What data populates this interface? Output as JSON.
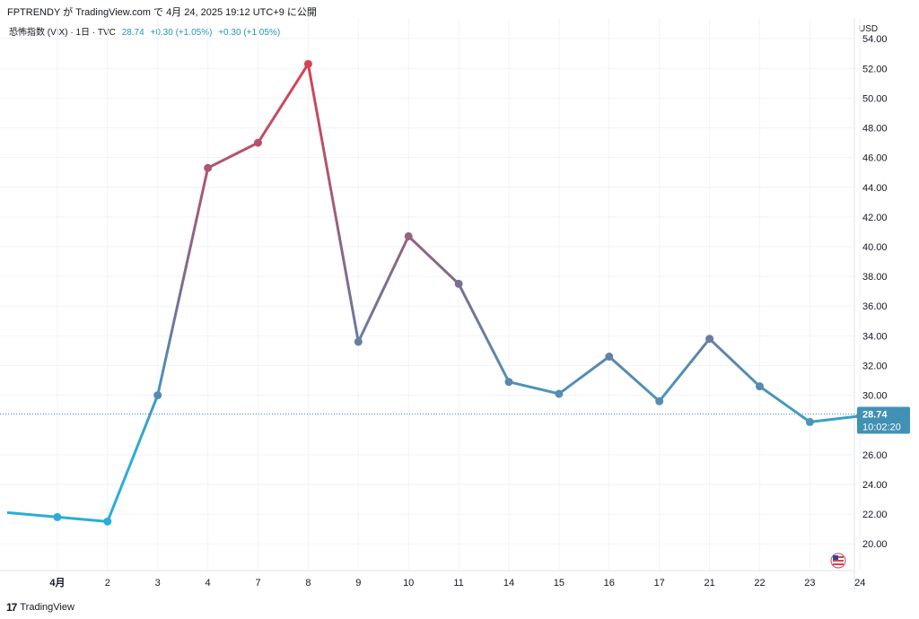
{
  "header": {
    "text": "FPTRENDY が TradingView.com で 4月 24, 2025 19:12 UTC+9 に公開"
  },
  "legend": {
    "symbol": "恐怖指数 (VIX) · 1日 · TVC",
    "price": "28.74",
    "change1": "+0.30 (+1.05%)",
    "change2": "+0.30 (+1.05%)"
  },
  "axis": {
    "currency": "USD"
  },
  "price_label": {
    "value": "28.74",
    "countdown": "10:02:20"
  },
  "footer": {
    "logo": "17",
    "brand": "TradingView"
  },
  "colors": {
    "low": "#2aaed6",
    "mid": "#7a6f92",
    "high": "#d64354",
    "label_bg": "#4191b4"
  },
  "chart_data": {
    "type": "line",
    "x": [
      "",
      "4月",
      "2",
      "3",
      "4",
      "7",
      "8",
      "9",
      "10",
      "11",
      "14",
      "15",
      "16",
      "17",
      "21",
      "22",
      "23",
      "24"
    ],
    "values": [
      22.1,
      21.8,
      21.5,
      30.0,
      45.3,
      47.0,
      52.3,
      33.6,
      40.7,
      37.5,
      30.9,
      30.1,
      32.6,
      29.6,
      33.8,
      30.6,
      28.2,
      28.6
    ],
    "last_price": 28.74,
    "y_ticks": [
      "54.00",
      "52.00",
      "50.00",
      "48.00",
      "46.00",
      "44.00",
      "42.00",
      "40.00",
      "38.00",
      "36.00",
      "34.00",
      "32.00",
      "30.00",
      "26.00",
      "24.00",
      "22.00",
      "20.00"
    ],
    "y_tick_values": [
      54,
      52,
      50,
      48,
      46,
      44,
      42,
      40,
      38,
      36,
      34,
      32,
      30,
      26,
      24,
      22,
      20
    ],
    "ylim": [
      18.2,
      55.4
    ],
    "grid": true,
    "title": "",
    "xlabel": "",
    "ylabel": ""
  }
}
